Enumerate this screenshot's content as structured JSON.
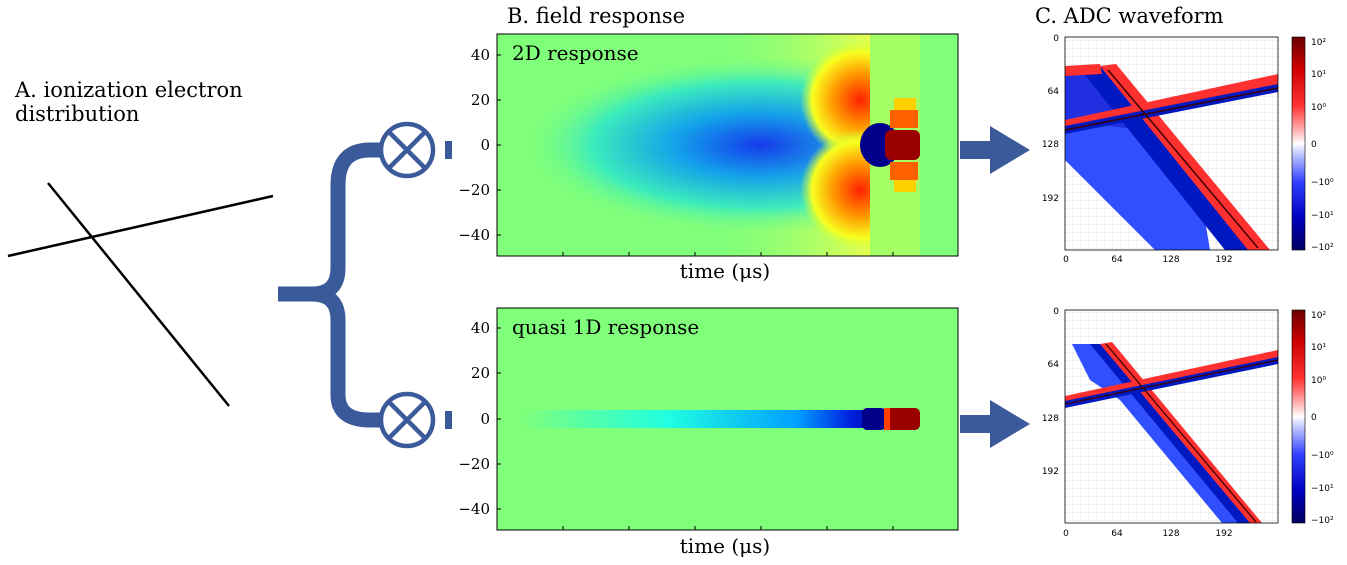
{
  "panel_a": {
    "title_line1": "A. ionization electron",
    "title_line2": "distribution"
  },
  "panel_b": {
    "title": "B. field response",
    "top_label": "2D response",
    "bottom_label": "quasi 1D response",
    "xlabel": "time (μs)",
    "yticks": [
      "40",
      "20",
      "0",
      "−20",
      "−40"
    ]
  },
  "panel_c": {
    "title": "C. ADC waveform",
    "xticks": [
      "0",
      "64",
      "128",
      "192"
    ],
    "yticks": [
      "0",
      "64",
      "128",
      "192"
    ],
    "colorbar_ticks": [
      "10²",
      "10¹",
      "10⁰",
      "0",
      "−10⁰",
      "−10¹",
      "−10²"
    ]
  },
  "colors": {
    "blue_accent": "#3a5a9a",
    "field_background": "#80ff7a"
  }
}
